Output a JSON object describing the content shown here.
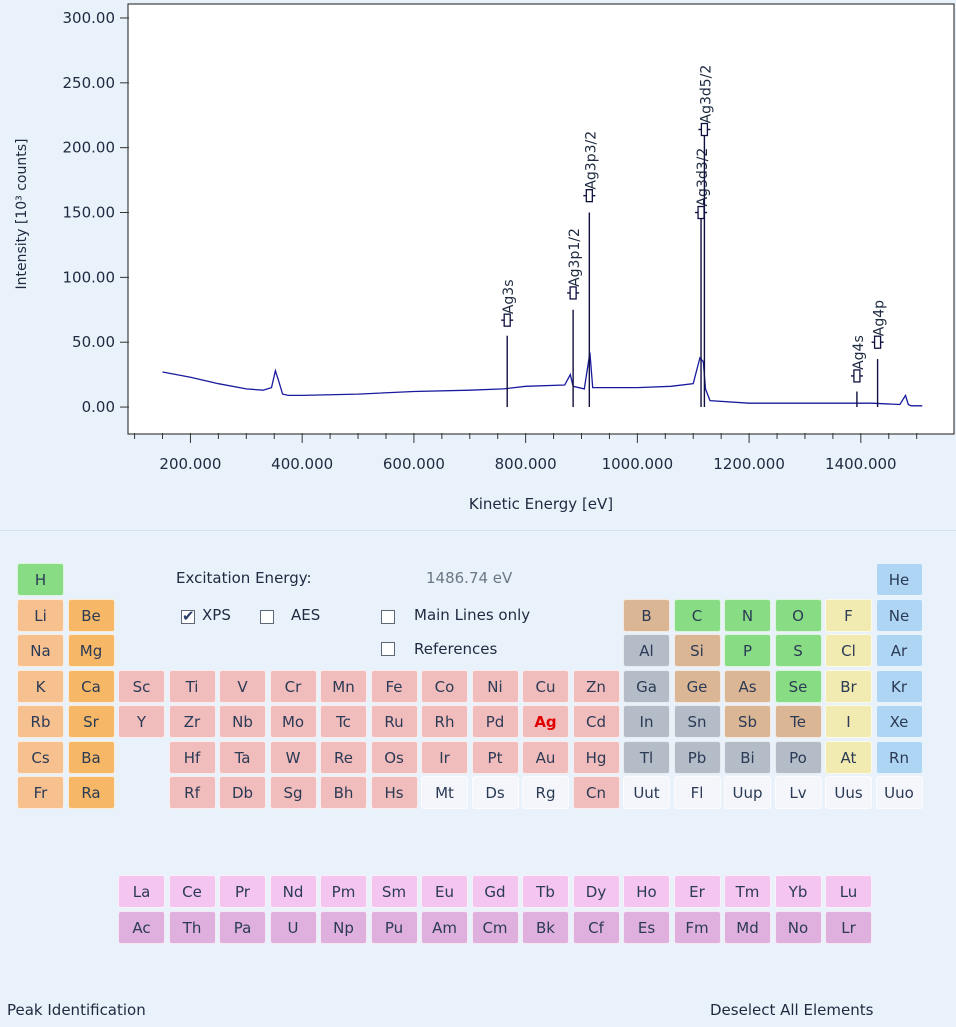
{
  "chart_data": {
    "type": "line",
    "xlabel": "Kinetic Energy [eV]",
    "ylabel": "Intensity [10³ counts]",
    "xlim": [
      90,
      1565
    ],
    "ylim": [
      -20,
      310
    ],
    "x_ticks": [
      "200.000",
      "400.000",
      "600.000",
      "800.000",
      "1000.000",
      "1200.000",
      "1400.000"
    ],
    "x_tick_values": [
      200,
      400,
      600,
      800,
      1000,
      1200,
      1400
    ],
    "y_ticks": [
      "0.00",
      "50.00",
      "100.00",
      "150.00",
      "200.00",
      "250.00",
      "300.00"
    ],
    "y_tick_values": [
      0,
      50,
      100,
      150,
      200,
      250,
      300
    ],
    "series": [
      {
        "color": "#1a1a9e",
        "x": [
          150,
          200,
          250,
          300,
          330,
          345,
          352,
          358,
          365,
          375,
          400,
          500,
          600,
          700,
          760,
          800,
          870,
          880,
          885,
          905,
          915,
          920,
          1000,
          1060,
          1100,
          1112,
          1118,
          1122,
          1130,
          1200,
          1300,
          1380,
          1420,
          1470,
          1480,
          1485,
          1490,
          1510
        ],
        "y": [
          27,
          23,
          18,
          14,
          13,
          15,
          28,
          20,
          10,
          9,
          9,
          10,
          12,
          13,
          14,
          16,
          17,
          25,
          16,
          14,
          42,
          15,
          15,
          16,
          18,
          38,
          35,
          14,
          5,
          3,
          3,
          3,
          3,
          2,
          9,
          2,
          1,
          1
        ]
      }
    ],
    "peak_markers": [
      {
        "label": "Ag3s",
        "x": 767,
        "y": 55,
        "marker_y": 67
      },
      {
        "label": "Ag3p1/2",
        "x": 885,
        "y": 75,
        "marker_y": 88
      },
      {
        "label": "Ag3p3/2",
        "x": 914,
        "y": 150,
        "marker_y": 163
      },
      {
        "label": "Ag3d3/2",
        "x": 1114,
        "y": 150,
        "marker_y": 150
      },
      {
        "label": "Ag3d5/2",
        "x": 1120,
        "y": 210,
        "marker_y": 214
      },
      {
        "label": "Ag4s",
        "x": 1393,
        "y": 12,
        "marker_y": 24
      },
      {
        "label": "Ag4p",
        "x": 1430,
        "y": 37,
        "marker_y": 50
      }
    ]
  },
  "controls": {
    "excitation_label": "Excitation Energy:",
    "excitation_value": "1486.74 eV",
    "xps_label": "XPS",
    "xps_checked": true,
    "aes_label": "AES",
    "aes_checked": false,
    "main_lines_label": "Main Lines only",
    "main_lines_checked": false,
    "references_label": "References",
    "references_checked": false
  },
  "footer": {
    "peak_identification": "Peak Identification",
    "deselect_all": "Deselect All Elements"
  },
  "colors": {
    "alkali": "#f7c08f",
    "alkaline_earth": "#f6b866",
    "transition": "#f1bcbc",
    "unknown": "#f4f6fb",
    "metalloid_dark": "#b3bcc7",
    "semimetal": "#dbb695",
    "nonmetal": "#88dc84",
    "halogen": "#f2ebb1",
    "noble": "#aed5f3",
    "lanthanide": "#f3c5ef",
    "actinide": "#dfb0dd"
  },
  "selected_element": "Ag",
  "periodic_table": [
    {
      "s": "H",
      "r": 1,
      "c": 1,
      "cat": "nonmetal"
    },
    {
      "s": "He",
      "r": 1,
      "c": 18,
      "cat": "noble"
    },
    {
      "s": "Li",
      "r": 2,
      "c": 1,
      "cat": "alkali"
    },
    {
      "s": "Be",
      "r": 2,
      "c": 2,
      "cat": "alkaline_earth"
    },
    {
      "s": "B",
      "r": 2,
      "c": 13,
      "cat": "semimetal"
    },
    {
      "s": "C",
      "r": 2,
      "c": 14,
      "cat": "nonmetal"
    },
    {
      "s": "N",
      "r": 2,
      "c": 15,
      "cat": "nonmetal"
    },
    {
      "s": "O",
      "r": 2,
      "c": 16,
      "cat": "nonmetal"
    },
    {
      "s": "F",
      "r": 2,
      "c": 17,
      "cat": "halogen"
    },
    {
      "s": "Ne",
      "r": 2,
      "c": 18,
      "cat": "noble"
    },
    {
      "s": "Na",
      "r": 3,
      "c": 1,
      "cat": "alkali"
    },
    {
      "s": "Mg",
      "r": 3,
      "c": 2,
      "cat": "alkaline_earth"
    },
    {
      "s": "Al",
      "r": 3,
      "c": 13,
      "cat": "metalloid_dark"
    },
    {
      "s": "Si",
      "r": 3,
      "c": 14,
      "cat": "semimetal"
    },
    {
      "s": "P",
      "r": 3,
      "c": 15,
      "cat": "nonmetal"
    },
    {
      "s": "S",
      "r": 3,
      "c": 16,
      "cat": "nonmetal"
    },
    {
      "s": "Cl",
      "r": 3,
      "c": 17,
      "cat": "halogen"
    },
    {
      "s": "Ar",
      "r": 3,
      "c": 18,
      "cat": "noble"
    },
    {
      "s": "K",
      "r": 4,
      "c": 1,
      "cat": "alkali"
    },
    {
      "s": "Ca",
      "r": 4,
      "c": 2,
      "cat": "alkaline_earth"
    },
    {
      "s": "Sc",
      "r": 4,
      "c": 3,
      "cat": "transition"
    },
    {
      "s": "Ti",
      "r": 4,
      "c": 4,
      "cat": "transition"
    },
    {
      "s": "V",
      "r": 4,
      "c": 5,
      "cat": "transition"
    },
    {
      "s": "Cr",
      "r": 4,
      "c": 6,
      "cat": "transition"
    },
    {
      "s": "Mn",
      "r": 4,
      "c": 7,
      "cat": "transition"
    },
    {
      "s": "Fe",
      "r": 4,
      "c": 8,
      "cat": "transition"
    },
    {
      "s": "Co",
      "r": 4,
      "c": 9,
      "cat": "transition"
    },
    {
      "s": "Ni",
      "r": 4,
      "c": 10,
      "cat": "transition"
    },
    {
      "s": "Cu",
      "r": 4,
      "c": 11,
      "cat": "transition"
    },
    {
      "s": "Zn",
      "r": 4,
      "c": 12,
      "cat": "transition"
    },
    {
      "s": "Ga",
      "r": 4,
      "c": 13,
      "cat": "metalloid_dark"
    },
    {
      "s": "Ge",
      "r": 4,
      "c": 14,
      "cat": "semimetal"
    },
    {
      "s": "As",
      "r": 4,
      "c": 15,
      "cat": "semimetal"
    },
    {
      "s": "Se",
      "r": 4,
      "c": 16,
      "cat": "nonmetal"
    },
    {
      "s": "Br",
      "r": 4,
      "c": 17,
      "cat": "halogen"
    },
    {
      "s": "Kr",
      "r": 4,
      "c": 18,
      "cat": "noble"
    },
    {
      "s": "Rb",
      "r": 5,
      "c": 1,
      "cat": "alkali"
    },
    {
      "s": "Sr",
      "r": 5,
      "c": 2,
      "cat": "alkaline_earth"
    },
    {
      "s": "Y",
      "r": 5,
      "c": 3,
      "cat": "transition"
    },
    {
      "s": "Zr",
      "r": 5,
      "c": 4,
      "cat": "transition"
    },
    {
      "s": "Nb",
      "r": 5,
      "c": 5,
      "cat": "transition"
    },
    {
      "s": "Mo",
      "r": 5,
      "c": 6,
      "cat": "transition"
    },
    {
      "s": "Tc",
      "r": 5,
      "c": 7,
      "cat": "transition"
    },
    {
      "s": "Ru",
      "r": 5,
      "c": 8,
      "cat": "transition"
    },
    {
      "s": "Rh",
      "r": 5,
      "c": 9,
      "cat": "transition"
    },
    {
      "s": "Pd",
      "r": 5,
      "c": 10,
      "cat": "transition"
    },
    {
      "s": "Ag",
      "r": 5,
      "c": 11,
      "cat": "transition"
    },
    {
      "s": "Cd",
      "r": 5,
      "c": 12,
      "cat": "transition"
    },
    {
      "s": "In",
      "r": 5,
      "c": 13,
      "cat": "metalloid_dark"
    },
    {
      "s": "Sn",
      "r": 5,
      "c": 14,
      "cat": "metalloid_dark"
    },
    {
      "s": "Sb",
      "r": 5,
      "c": 15,
      "cat": "semimetal"
    },
    {
      "s": "Te",
      "r": 5,
      "c": 16,
      "cat": "semimetal"
    },
    {
      "s": "I",
      "r": 5,
      "c": 17,
      "cat": "halogen"
    },
    {
      "s": "Xe",
      "r": 5,
      "c": 18,
      "cat": "noble"
    },
    {
      "s": "Cs",
      "r": 6,
      "c": 1,
      "cat": "alkali"
    },
    {
      "s": "Ba",
      "r": 6,
      "c": 2,
      "cat": "alkaline_earth"
    },
    {
      "s": "Hf",
      "r": 6,
      "c": 4,
      "cat": "transition"
    },
    {
      "s": "Ta",
      "r": 6,
      "c": 5,
      "cat": "transition"
    },
    {
      "s": "W",
      "r": 6,
      "c": 6,
      "cat": "transition"
    },
    {
      "s": "Re",
      "r": 6,
      "c": 7,
      "cat": "transition"
    },
    {
      "s": "Os",
      "r": 6,
      "c": 8,
      "cat": "transition"
    },
    {
      "s": "Ir",
      "r": 6,
      "c": 9,
      "cat": "transition"
    },
    {
      "s": "Pt",
      "r": 6,
      "c": 10,
      "cat": "transition"
    },
    {
      "s": "Au",
      "r": 6,
      "c": 11,
      "cat": "transition"
    },
    {
      "s": "Hg",
      "r": 6,
      "c": 12,
      "cat": "transition"
    },
    {
      "s": "Tl",
      "r": 6,
      "c": 13,
      "cat": "metalloid_dark"
    },
    {
      "s": "Pb",
      "r": 6,
      "c": 14,
      "cat": "metalloid_dark"
    },
    {
      "s": "Bi",
      "r": 6,
      "c": 15,
      "cat": "metalloid_dark"
    },
    {
      "s": "Po",
      "r": 6,
      "c": 16,
      "cat": "metalloid_dark"
    },
    {
      "s": "At",
      "r": 6,
      "c": 17,
      "cat": "halogen"
    },
    {
      "s": "Rn",
      "r": 6,
      "c": 18,
      "cat": "noble"
    },
    {
      "s": "Fr",
      "r": 7,
      "c": 1,
      "cat": "alkali"
    },
    {
      "s": "Ra",
      "r": 7,
      "c": 2,
      "cat": "alkaline_earth"
    },
    {
      "s": "Rf",
      "r": 7,
      "c": 4,
      "cat": "transition"
    },
    {
      "s": "Db",
      "r": 7,
      "c": 5,
      "cat": "transition"
    },
    {
      "s": "Sg",
      "r": 7,
      "c": 6,
      "cat": "transition"
    },
    {
      "s": "Bh",
      "r": 7,
      "c": 7,
      "cat": "transition"
    },
    {
      "s": "Hs",
      "r": 7,
      "c": 8,
      "cat": "transition"
    },
    {
      "s": "Mt",
      "r": 7,
      "c": 9,
      "cat": "unknown"
    },
    {
      "s": "Ds",
      "r": 7,
      "c": 10,
      "cat": "unknown"
    },
    {
      "s": "Rg",
      "r": 7,
      "c": 11,
      "cat": "unknown"
    },
    {
      "s": "Cn",
      "r": 7,
      "c": 12,
      "cat": "transition"
    },
    {
      "s": "Uut",
      "r": 7,
      "c": 13,
      "cat": "unknown"
    },
    {
      "s": "Fl",
      "r": 7,
      "c": 14,
      "cat": "unknown"
    },
    {
      "s": "Uup",
      "r": 7,
      "c": 15,
      "cat": "unknown"
    },
    {
      "s": "Lv",
      "r": 7,
      "c": 16,
      "cat": "unknown"
    },
    {
      "s": "Uus",
      "r": 7,
      "c": 17,
      "cat": "unknown"
    },
    {
      "s": "Uuo",
      "r": 7,
      "c": 18,
      "cat": "unknown"
    },
    {
      "s": "La",
      "r": 9,
      "c": 3,
      "cat": "lanthanide"
    },
    {
      "s": "Ce",
      "r": 9,
      "c": 4,
      "cat": "lanthanide"
    },
    {
      "s": "Pr",
      "r": 9,
      "c": 5,
      "cat": "lanthanide"
    },
    {
      "s": "Nd",
      "r": 9,
      "c": 6,
      "cat": "lanthanide"
    },
    {
      "s": "Pm",
      "r": 9,
      "c": 7,
      "cat": "lanthanide"
    },
    {
      "s": "Sm",
      "r": 9,
      "c": 8,
      "cat": "lanthanide"
    },
    {
      "s": "Eu",
      "r": 9,
      "c": 9,
      "cat": "lanthanide"
    },
    {
      "s": "Gd",
      "r": 9,
      "c": 10,
      "cat": "lanthanide"
    },
    {
      "s": "Tb",
      "r": 9,
      "c": 11,
      "cat": "lanthanide"
    },
    {
      "s": "Dy",
      "r": 9,
      "c": 12,
      "cat": "lanthanide"
    },
    {
      "s": "Ho",
      "r": 9,
      "c": 13,
      "cat": "lanthanide"
    },
    {
      "s": "Er",
      "r": 9,
      "c": 14,
      "cat": "lanthanide"
    },
    {
      "s": "Tm",
      "r": 9,
      "c": 15,
      "cat": "lanthanide"
    },
    {
      "s": "Yb",
      "r": 9,
      "c": 16,
      "cat": "lanthanide"
    },
    {
      "s": "Lu",
      "r": 9,
      "c": 17,
      "cat": "lanthanide"
    },
    {
      "s": "Ac",
      "r": 10,
      "c": 3,
      "cat": "actinide"
    },
    {
      "s": "Th",
      "r": 10,
      "c": 4,
      "cat": "actinide"
    },
    {
      "s": "Pa",
      "r": 10,
      "c": 5,
      "cat": "actinide"
    },
    {
      "s": "U",
      "r": 10,
      "c": 6,
      "cat": "actinide"
    },
    {
      "s": "Np",
      "r": 10,
      "c": 7,
      "cat": "actinide"
    },
    {
      "s": "Pu",
      "r": 10,
      "c": 8,
      "cat": "actinide"
    },
    {
      "s": "Am",
      "r": 10,
      "c": 9,
      "cat": "actinide"
    },
    {
      "s": "Cm",
      "r": 10,
      "c": 10,
      "cat": "actinide"
    },
    {
      "s": "Bk",
      "r": 10,
      "c": 11,
      "cat": "actinide"
    },
    {
      "s": "Cf",
      "r": 10,
      "c": 12,
      "cat": "actinide"
    },
    {
      "s": "Es",
      "r": 10,
      "c": 13,
      "cat": "actinide"
    },
    {
      "s": "Fm",
      "r": 10,
      "c": 14,
      "cat": "actinide"
    },
    {
      "s": "Md",
      "r": 10,
      "c": 15,
      "cat": "actinide"
    },
    {
      "s": "No",
      "r": 10,
      "c": 16,
      "cat": "actinide"
    },
    {
      "s": "Lr",
      "r": 10,
      "c": 17,
      "cat": "actinide"
    }
  ]
}
